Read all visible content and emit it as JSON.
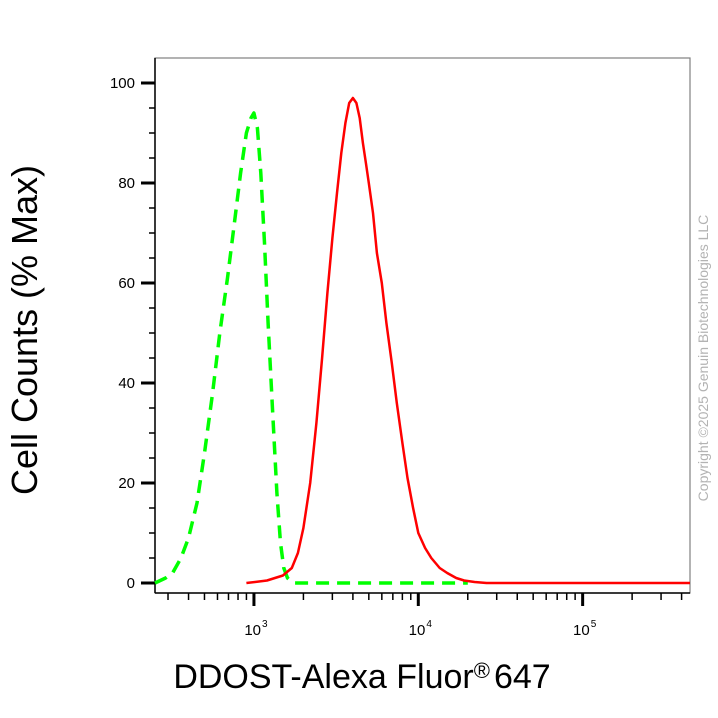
{
  "chart_data": {
    "type": "line",
    "xlabel_main": "DDOST-Alexa Fluor",
    "xlabel_reg": "®",
    "xlabel_num": "647",
    "ylabel": "Cell Counts (% Max)",
    "xscale": "log",
    "xlim": [
      250,
      450000
    ],
    "ylim": [
      -2,
      105
    ],
    "yticks": [
      0,
      20,
      40,
      60,
      80,
      100
    ],
    "yticks_labels": [
      "0",
      "20",
      "40",
      "60",
      "80",
      "100"
    ],
    "xticks_base": "10",
    "xticks": [
      {
        "value": 1000,
        "exp": "3"
      },
      {
        "value": 10000,
        "exp": "4"
      },
      {
        "value": 100000,
        "exp": "5"
      }
    ],
    "copyright": "Copyright ©2025 Genuin Biotechnologies LLC",
    "colors": {
      "isotype": "#00ff00",
      "sample": "#ff0000",
      "axis": "#000000",
      "frame": "#808080"
    },
    "series": [
      {
        "style": "dashed",
        "color": "#00ff00",
        "x": [
          250,
          290,
          320,
          360,
          400,
          450,
          500,
          560,
          620,
          690,
          760,
          830,
          900,
          960,
          1000,
          1050,
          1100,
          1160,
          1220,
          1300,
          1380,
          1450,
          1520,
          1600,
          1680,
          1750,
          1850,
          2000,
          2500,
          4000,
          10000,
          20000
        ],
        "y": [
          0,
          1,
          2,
          5,
          9,
          16,
          26,
          38,
          50,
          61,
          72,
          82,
          90,
          93,
          94,
          91,
          82,
          68,
          52,
          34,
          18,
          8,
          3,
          1,
          0.3,
          0,
          0,
          0,
          0,
          0,
          0,
          0
        ]
      },
      {
        "style": "solid",
        "color": "#ff0000",
        "x": [
          900,
          1200,
          1500,
          1700,
          1850,
          2000,
          2200,
          2400,
          2600,
          2800,
          3000,
          3200,
          3400,
          3600,
          3800,
          4000,
          4200,
          4400,
          4600,
          4800,
          5000,
          5300,
          5600,
          6000,
          6400,
          6900,
          7400,
          8000,
          8600,
          9300,
          10000,
          11000,
          12000,
          13500,
          15000,
          17000,
          19000,
          22000,
          26000,
          30000,
          50000,
          100000,
          200000,
          450000
        ],
        "y": [
          0,
          0.5,
          1.5,
          3,
          6,
          11,
          20,
          32,
          45,
          58,
          69,
          78,
          86,
          92,
          96,
          97,
          96,
          93,
          88,
          84,
          80,
          74,
          66,
          60,
          52,
          44,
          36,
          28,
          21,
          15,
          10,
          7,
          5,
          3,
          2,
          1,
          0.5,
          0.2,
          0,
          0,
          0,
          0,
          0,
          0
        ]
      }
    ]
  }
}
